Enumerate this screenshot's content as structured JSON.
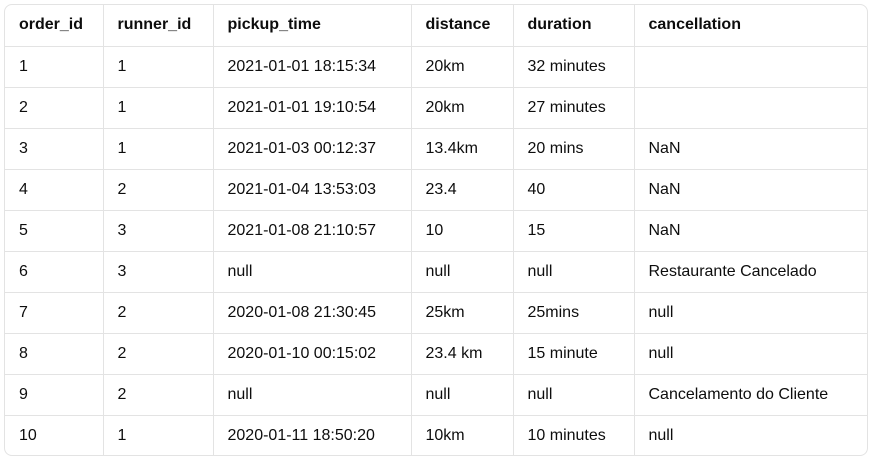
{
  "table": {
    "columns": [
      "order_id",
      "runner_id",
      "pickup_time",
      "distance",
      "duration",
      "cancellation"
    ],
    "rows": [
      [
        "1",
        "1",
        "2021-01-01 18:15:34",
        "20km",
        "32 minutes",
        ""
      ],
      [
        "2",
        "1",
        "2021-01-01 19:10:54",
        "20km",
        "27 minutes",
        ""
      ],
      [
        "3",
        "1",
        "2021-01-03 00:12:37",
        "13.4km",
        "20 mins",
        "NaN"
      ],
      [
        "4",
        "2",
        "2021-01-04 13:53:03",
        "23.4",
        "40",
        "NaN"
      ],
      [
        "5",
        "3",
        "2021-01-08 21:10:57",
        "10",
        "15",
        "NaN"
      ],
      [
        "6",
        "3",
        "null",
        "null",
        "null",
        "Restaurante Cancelado"
      ],
      [
        "7",
        "2",
        "2020-01-08 21:30:45",
        "25km",
        "25mins",
        "null"
      ],
      [
        "8",
        "2",
        "2020-01-10 00:15:02",
        "23.4 km",
        "15 minute",
        "null"
      ],
      [
        "9",
        "2",
        "null",
        "null",
        "null",
        "Cancelamento do Cliente"
      ],
      [
        "10",
        "1",
        "2020-01-11 18:50:20",
        "10km",
        "10 minutes",
        "null"
      ]
    ]
  }
}
